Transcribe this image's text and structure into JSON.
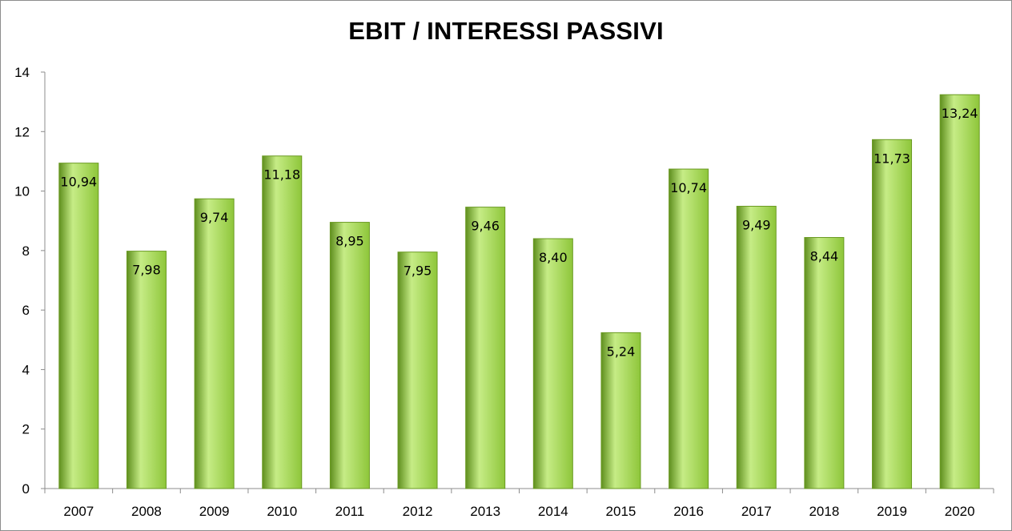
{
  "chart_data": {
    "type": "bar",
    "title": "EBIT / INTERESSI PASSIVI",
    "categories": [
      "2007",
      "2008",
      "2009",
      "2010",
      "2011",
      "2012",
      "2013",
      "2014",
      "2015",
      "2016",
      "2017",
      "2018",
      "2019",
      "2020"
    ],
    "values": [
      10.94,
      7.98,
      9.74,
      11.18,
      8.95,
      7.95,
      9.46,
      8.4,
      5.24,
      10.74,
      9.49,
      8.44,
      11.73,
      13.24
    ],
    "data_labels": [
      "10,94",
      "7,98",
      "9,74",
      "11,18",
      "8,95",
      "7,95",
      "9,46",
      "8,40",
      "5,24",
      "10,74",
      "9,49",
      "8,44",
      "11,73",
      "13,24"
    ],
    "yticks": [
      "0",
      "2",
      "4",
      "6",
      "8",
      "10",
      "12",
      "14"
    ],
    "ylim": [
      0,
      14
    ],
    "xlabel": "",
    "ylabel": "",
    "grid": false,
    "legend": "none",
    "bar_color": "#8ec63a",
    "bar_color_light": "#c6ec86",
    "bar_color_dark": "#5f8f1e"
  }
}
